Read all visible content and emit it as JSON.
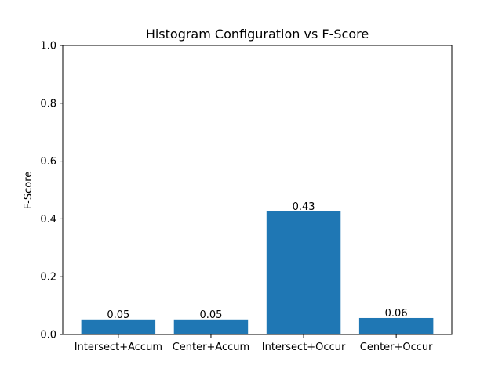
{
  "chart_data": {
    "type": "bar",
    "title": "Histogram Configuration vs F-Score",
    "xlabel": "",
    "ylabel": "F-Score",
    "categories": [
      "Intersect+Accum",
      "Center+Accum",
      "Intersect+Occur",
      "Center+Occur"
    ],
    "values": [
      0.052,
      0.052,
      0.426,
      0.057
    ],
    "data_labels": [
      "0.05",
      "0.05",
      "0.43",
      "0.06"
    ],
    "ylim": [
      0,
      1.0
    ],
    "yticks": [
      0.0,
      0.2,
      0.4,
      0.6,
      0.8,
      1.0
    ],
    "ytick_labels": [
      "0.0",
      "0.2",
      "0.4",
      "0.6",
      "0.8",
      "1.0"
    ],
    "bar_color": "#1f77b4",
    "grid": false,
    "legend": "none"
  }
}
